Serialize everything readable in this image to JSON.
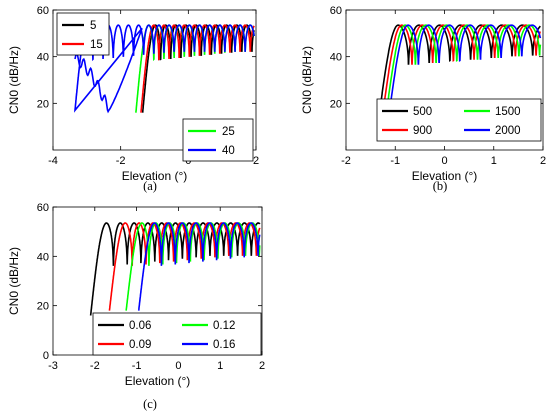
{
  "chart_data": [
    {
      "panel": "(a)",
      "type": "line",
      "xlabel": "Elevation (°)",
      "ylabel": "CN0 (dB/Hz)",
      "xlim": [
        -4,
        2
      ],
      "ylim": [
        0,
        60
      ],
      "xticks": [
        -4,
        -2,
        0,
        2
      ],
      "yticks": [
        20,
        40,
        60
      ],
      "legend": [
        "top-left",
        "bottom-right"
      ],
      "colors": [
        "#000000",
        "#ff0000",
        "#00ff00",
        "#0000ff"
      ],
      "series": [
        {
          "name": "5",
          "start": -1.35,
          "end": 1.95,
          "min_y": 16,
          "period": 0.3,
          "mean": 51.5,
          "depth": 20
        },
        {
          "name": "15",
          "start": -1.4,
          "end": 1.95,
          "min_y": 16,
          "period": 0.3,
          "mean": 51.5,
          "depth": 20
        },
        {
          "name": "25",
          "start": -1.55,
          "end": 1.95,
          "min_y": 16,
          "period": 0.3,
          "mean": 51.5,
          "depth": 20
        },
        {
          "name": "40",
          "start": -3.35,
          "end": 1.95,
          "min_y": 17,
          "period": 0.3,
          "mean": 51.5,
          "depth": 20
        }
      ]
    },
    {
      "panel": "(b)",
      "type": "line",
      "xlabel": "Elevation (°)",
      "ylabel": "CN0 (dB/Hz)",
      "xlim": [
        -2,
        2
      ],
      "ylim": [
        0,
        60
      ],
      "xticks": [
        -2,
        -1,
        0,
        1,
        2
      ],
      "yticks": [
        20,
        40,
        60
      ],
      "legend": "bottom",
      "colors": [
        "#000000",
        "#ff0000",
        "#00ff00",
        "#0000ff"
      ],
      "series": [
        {
          "name": "500",
          "start": -1.32,
          "end": 1.95,
          "min_y": 16,
          "period": 0.42,
          "mean": 51,
          "depth": 22
        },
        {
          "name": "900",
          "start": -1.25,
          "end": 1.95,
          "min_y": 16,
          "period": 0.42,
          "mean": 51,
          "depth": 22
        },
        {
          "name": "1500",
          "start": -1.18,
          "end": 1.95,
          "min_y": 16,
          "period": 0.42,
          "mean": 51,
          "depth": 22
        },
        {
          "name": "2000",
          "start": -1.12,
          "end": 1.95,
          "min_y": 16,
          "period": 0.42,
          "mean": 51,
          "depth": 22
        }
      ]
    },
    {
      "panel": "(c)",
      "type": "line",
      "xlabel": "Elevation (°)",
      "ylabel": "CN0 (dB/Hz)",
      "xlim": [
        -3,
        2
      ],
      "ylim": [
        0,
        60
      ],
      "xticks": [
        -3,
        -2,
        -1,
        0,
        1,
        2
      ],
      "yticks": [
        0,
        20,
        40,
        60
      ],
      "legend": "bottom",
      "colors": [
        "#000000",
        "#ff0000",
        "#00ff00",
        "#0000ff"
      ],
      "series": [
        {
          "name": "0.06",
          "start": -2.1,
          "end": 1.95,
          "min_y": 16,
          "period": 0.33,
          "mean": 51.5,
          "depth": 22
        },
        {
          "name": "0.09",
          "start": -1.65,
          "end": 1.95,
          "min_y": 18,
          "period": 0.33,
          "mean": 51.5,
          "depth": 22
        },
        {
          "name": "0.12",
          "start": -1.25,
          "end": 1.95,
          "min_y": 18,
          "period": 0.33,
          "mean": 51.5,
          "depth": 22
        },
        {
          "name": "0.16",
          "start": -0.95,
          "end": 1.95,
          "min_y": 18,
          "period": 0.33,
          "mean": 51.5,
          "depth": 22
        }
      ]
    }
  ]
}
